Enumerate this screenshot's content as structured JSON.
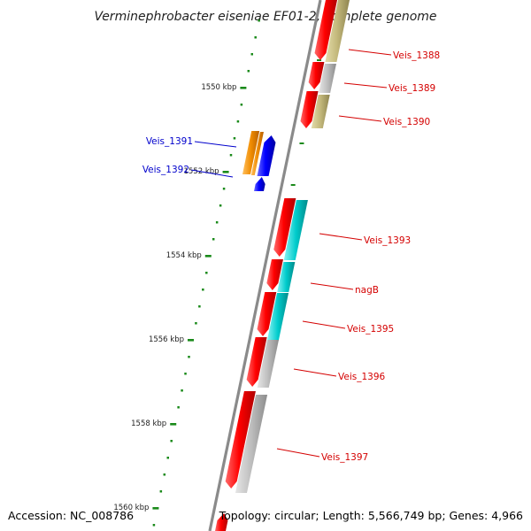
{
  "title": "Verminephrobacter eiseniae EF01-2, complete genome",
  "accession_text": "Accession: NC_008786",
  "topology_text": "Topology: circular; Length: 5,566,749 bp; Genes: 4,966",
  "colors": {
    "forward_cds": "#e8000b",
    "reverse_cds": "#0000e6",
    "orange": "#f08c00",
    "olive": "#c2b77a",
    "cyan": "#00c8c8",
    "gray": "#b4b4b4",
    "backbone": "#8a8a8a",
    "tick": "#1a8a1a",
    "label_red": "#d40000",
    "label_blue": "#0000cc"
  },
  "ticks": [
    {
      "label": "1550 kbp"
    },
    {
      "label": "1552 kbp"
    },
    {
      "label": "1554 kbp"
    },
    {
      "label": "1556 kbp"
    },
    {
      "label": "1558 kbp"
    },
    {
      "label": "1560 kbp"
    }
  ],
  "gene_labels": [
    {
      "text": "Veis_1388",
      "color": "label_red"
    },
    {
      "text": "Veis_1389",
      "color": "label_red"
    },
    {
      "text": "Veis_1390",
      "color": "label_red"
    },
    {
      "text": "Veis_1391",
      "color": "label_blue"
    },
    {
      "text": "Veis_1392",
      "color": "label_blue"
    },
    {
      "text": "Veis_1393",
      "color": "label_red"
    },
    {
      "text": "nagB",
      "color": "label_red"
    },
    {
      "text": "Veis_1395",
      "color": "label_red"
    },
    {
      "text": "Veis_1396",
      "color": "label_red"
    },
    {
      "text": "Veis_1397",
      "color": "label_red"
    }
  ]
}
